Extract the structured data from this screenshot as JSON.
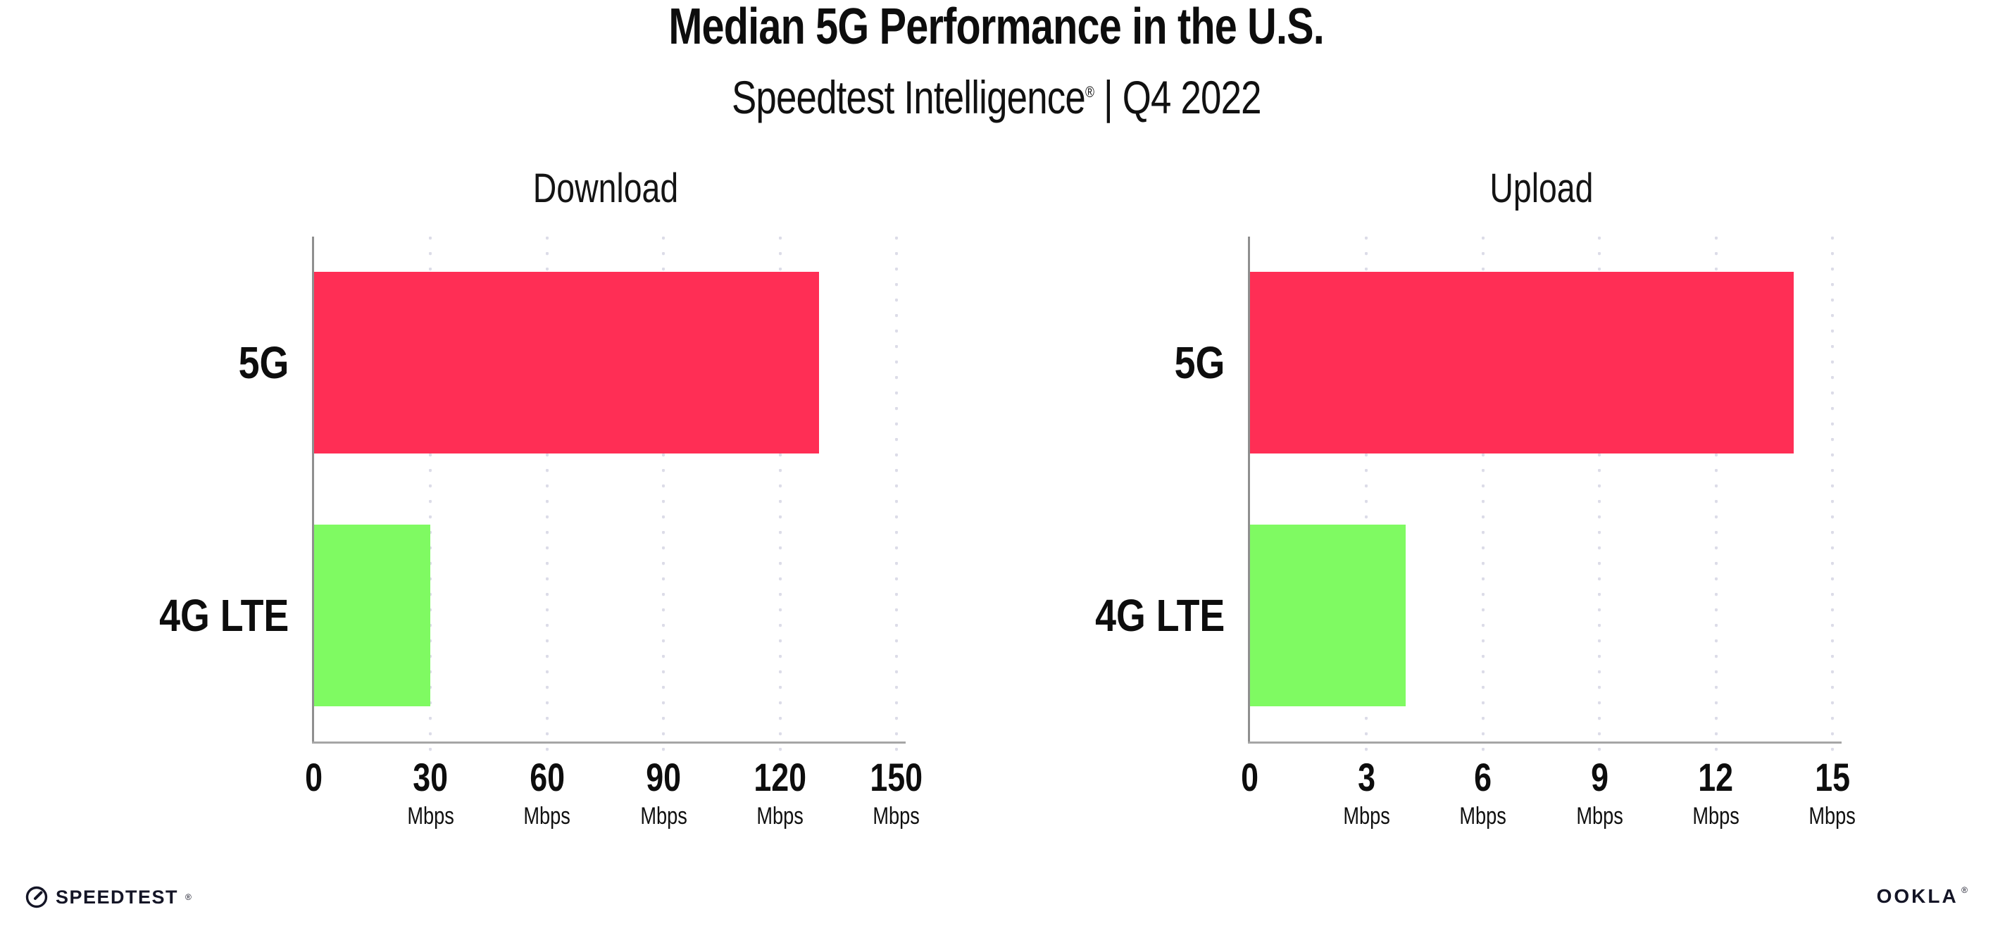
{
  "header": {
    "title": "Median 5G Performance in the U.S.",
    "subtitle_brand": "Speedtest Intelligence",
    "subtitle_reg": "®",
    "subtitle_rest": " | Q4 2022"
  },
  "colors": {
    "bar_5g": "#ff2e55",
    "bar_4g_lte": "#7ffa62",
    "axis": "#a6a6a6",
    "gridline": "#dcdce8",
    "text": "#0d0d0d"
  },
  "chart_data": [
    {
      "type": "bar",
      "orientation": "horizontal",
      "title": "Download",
      "categories": [
        "5G",
        "4G LTE"
      ],
      "values": [
        130,
        30
      ],
      "unit": "Mbps",
      "xlim": [
        0,
        150
      ],
      "xticks": [
        0,
        30,
        60,
        90,
        120,
        150
      ],
      "grid": "dotted-vertical",
      "legend": "none"
    },
    {
      "type": "bar",
      "orientation": "horizontal",
      "title": "Upload",
      "categories": [
        "5G",
        "4G LTE"
      ],
      "values": [
        14,
        4
      ],
      "unit": "Mbps",
      "xlim": [
        0,
        15
      ],
      "xticks": [
        0,
        3,
        6,
        9,
        12,
        15
      ],
      "grid": "dotted-vertical",
      "legend": "none"
    }
  ],
  "footer": {
    "speedtest_text": "SPEEDTEST",
    "speedtest_mark": "®",
    "ookla_text": "OOKLA",
    "ookla_mark": "®"
  }
}
